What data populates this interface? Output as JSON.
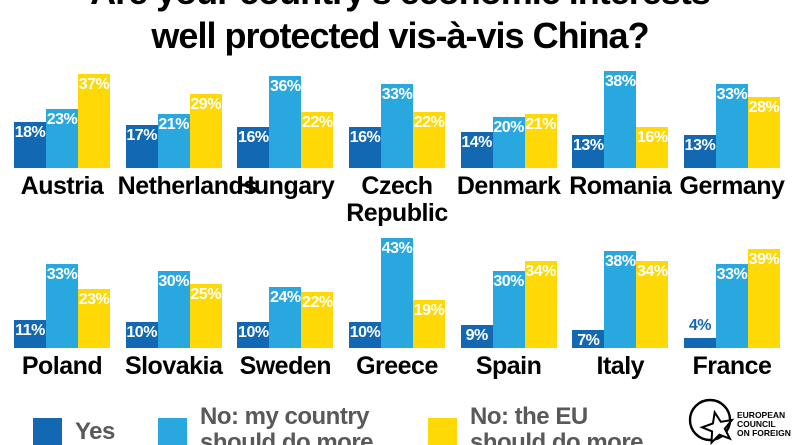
{
  "title": {
    "line1": "Are your country's economic interests",
    "line2": "well protected vis-à-vis China?"
  },
  "chart_data": {
    "type": "bar",
    "title": "Are your country's economic interests well protected vis-à-vis China?",
    "unit": "%",
    "value_range": [
      0,
      43
    ],
    "series_names": [
      "Yes",
      "No: my country should do more",
      "No: the EU should do more"
    ],
    "colors": {
      "yes": "#1268b3",
      "no_country": "#29a8e0",
      "no_eu": "#fed905"
    },
    "rows": [
      [
        {
          "country": "Austria",
          "values": [
            18,
            23,
            37
          ]
        },
        {
          "country": "Netherlands",
          "values": [
            17,
            21,
            29
          ]
        },
        {
          "country": "Hungary",
          "values": [
            16,
            36,
            22
          ]
        },
        {
          "country": "Czech Republic",
          "values": [
            16,
            33,
            22
          ]
        },
        {
          "country": "Denmark",
          "values": [
            14,
            20,
            21
          ]
        },
        {
          "country": "Romania",
          "values": [
            13,
            38,
            16
          ]
        },
        {
          "country": "Germany",
          "values": [
            13,
            33,
            28
          ]
        }
      ],
      [
        {
          "country": "Poland",
          "values": [
            11,
            33,
            23
          ]
        },
        {
          "country": "Slovakia",
          "values": [
            10,
            30,
            25
          ]
        },
        {
          "country": "Sweden",
          "values": [
            10,
            24,
            22
          ]
        },
        {
          "country": "Greece",
          "values": [
            10,
            43,
            19
          ]
        },
        {
          "country": "Spain",
          "values": [
            9,
            30,
            34
          ]
        },
        {
          "country": "Italy",
          "values": [
            7,
            38,
            34
          ]
        },
        {
          "country": "France",
          "values": [
            4,
            33,
            39
          ]
        }
      ]
    ],
    "legend_position": "bottom"
  },
  "legend": {
    "items": [
      {
        "key": "yes",
        "lines": [
          "Yes"
        ]
      },
      {
        "key": "no_country",
        "lines": [
          "No: my country",
          "should do more"
        ]
      },
      {
        "key": "no_eu",
        "lines": [
          "No: the EU",
          "should do more"
        ]
      }
    ]
  },
  "logo": {
    "lines": [
      "EUROPEAN",
      "COUNCIL",
      "ON FOREIGN"
    ]
  }
}
